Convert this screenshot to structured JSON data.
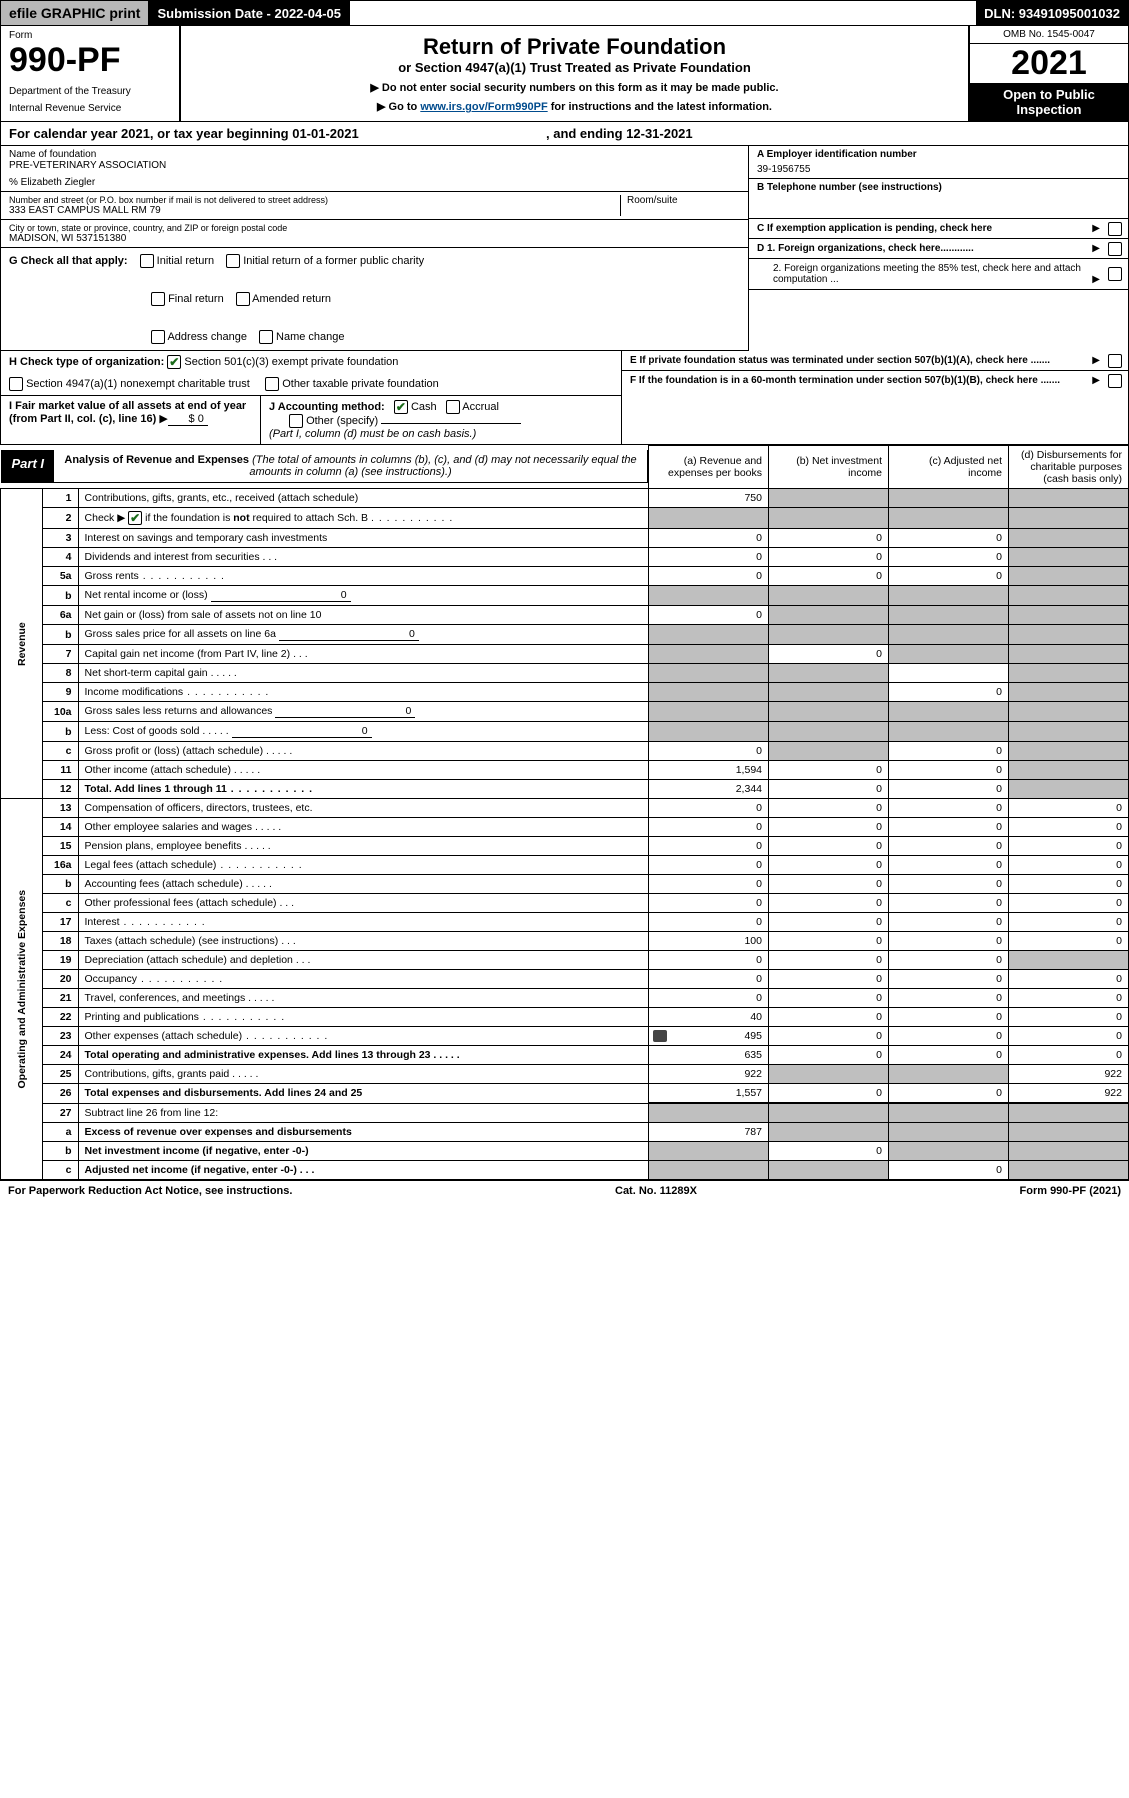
{
  "topbar": {
    "efile": "efile GRAPHIC print",
    "sub_label": "Submission Date - 2022-04-05",
    "dln": "DLN: 93491095001032"
  },
  "header": {
    "form_word": "Form",
    "form_no": "990-PF",
    "dept1": "Department of the Treasury",
    "dept2": "Internal Revenue Service",
    "title": "Return of Private Foundation",
    "subtitle": "or Section 4947(a)(1) Trust Treated as Private Foundation",
    "inst1": "Do not enter social security numbers on this form as it may be made public.",
    "inst2_pre": "Go to ",
    "inst2_link": "www.irs.gov/Form990PF",
    "inst2_post": " for instructions and the latest information.",
    "omb": "OMB No. 1545-0047",
    "year": "2021",
    "open": "Open to Public Inspection"
  },
  "cal": {
    "text_pre": "For calendar year 2021, or tax year beginning 01-01-2021",
    "text_mid": ", and ending 12-31-2021"
  },
  "org": {
    "name_lbl": "Name of foundation",
    "name": "PRE-VETERINARY ASSOCIATION",
    "care": "% Elizabeth Ziegler",
    "addr_lbl": "Number and street (or P.O. box number if mail is not delivered to street address)",
    "addr": "333 EAST CAMPUS MALL RM 79",
    "room_lbl": "Room/suite",
    "city_lbl": "City or town, state or province, country, and ZIP or foreign postal code",
    "city": "MADISON, WI  537151380",
    "ein_lbl": "A Employer identification number",
    "ein": "39-1956755",
    "tel_lbl": "B Telephone number (see instructions)",
    "c_lbl": "C If exemption application is pending, check here",
    "d1": "D 1. Foreign organizations, check here............",
    "d2": "2. Foreign organizations meeting the 85% test, check here and attach computation ...",
    "e": "E  If private foundation status was terminated under section 507(b)(1)(A), check here .......",
    "f": "F  If the foundation is in a 60-month termination under section 507(b)(1)(B), check here .......",
    "g_lbl": "G Check all that apply:",
    "g_opts": [
      "Initial return",
      "Initial return of a former public charity",
      "Final return",
      "Amended return",
      "Address change",
      "Name change"
    ],
    "h_lbl": "H Check type of organization:",
    "h_opts": [
      "Section 501(c)(3) exempt private foundation",
      "Section 4947(a)(1) nonexempt charitable trust",
      "Other taxable private foundation"
    ],
    "i_lbl": "I Fair market value of all assets at end of year (from Part II, col. (c), line 16)",
    "i_val": "$  0",
    "j_lbl": "J Accounting method:",
    "j_cash": "Cash",
    "j_acc": "Accrual",
    "j_other": "Other (specify)",
    "j_note": "(Part I, column (d) must be on cash basis.)"
  },
  "part1": {
    "label": "Part I",
    "desc_b": "Analysis of Revenue and Expenses",
    "desc_i": " (The total of amounts in columns (b), (c), and (d) may not necessarily equal the amounts in column (a) (see instructions).)",
    "col_a": "(a)   Revenue and expenses per books",
    "col_b": "(b)   Net investment income",
    "col_c": "(c)   Adjusted net income",
    "col_d": "(d)  Disbursements for charitable purposes (cash basis only)"
  },
  "section_labels": {
    "rev": "Revenue",
    "exp": "Operating and Administrative Expenses"
  },
  "rows": [
    {
      "n": "1",
      "d": "Contributions, gifts, grants, etc., received (attach schedule)",
      "a": "750",
      "grey": [
        "b",
        "c",
        "d"
      ]
    },
    {
      "n": "2",
      "d": "Check ▶ ☑ if the foundation is not required to attach Sch. B",
      "dots": "long",
      "grey": [
        "a",
        "b",
        "c",
        "d"
      ],
      "note": true
    },
    {
      "n": "3",
      "d": "Interest on savings and temporary cash investments",
      "a": "0",
      "b": "0",
      "c": "0",
      "grey": [
        "d"
      ]
    },
    {
      "n": "4",
      "d": "Dividends and interest from securities",
      "dots": "t",
      "a": "0",
      "b": "0",
      "c": "0",
      "grey": [
        "d"
      ]
    },
    {
      "n": "5a",
      "d": "Gross rents",
      "dots": "long",
      "a": "0",
      "b": "0",
      "c": "0",
      "grey": [
        "d"
      ]
    },
    {
      "n": "b",
      "d": "Net rental income or (loss)",
      "u": "0",
      "grey": [
        "a",
        "b",
        "c",
        "d"
      ]
    },
    {
      "n": "6a",
      "d": "Net gain or (loss) from sale of assets not on line 10",
      "a": "0",
      "grey": [
        "b",
        "c",
        "d"
      ]
    },
    {
      "n": "b",
      "d": "Gross sales price for all assets on line 6a",
      "u": "0",
      "grey": [
        "a",
        "b",
        "c",
        "d"
      ]
    },
    {
      "n": "7",
      "d": "Capital gain net income (from Part IV, line 2)",
      "dots": "t",
      "b": "0",
      "grey": [
        "a",
        "c",
        "d"
      ]
    },
    {
      "n": "8",
      "d": "Net short-term capital gain",
      "dots": "s",
      "grey": [
        "a",
        "b",
        "d"
      ]
    },
    {
      "n": "9",
      "d": "Income modifications",
      "dots": "long",
      "c": "0",
      "grey": [
        "a",
        "b",
        "d"
      ]
    },
    {
      "n": "10a",
      "d": "Gross sales less returns and allowances",
      "u": "0",
      "grey": [
        "a",
        "b",
        "c",
        "d"
      ]
    },
    {
      "n": "b",
      "d": "Less: Cost of goods sold",
      "dots": "s",
      "u": "0",
      "grey": [
        "a",
        "b",
        "c",
        "d"
      ]
    },
    {
      "n": "c",
      "d": "Gross profit or (loss) (attach schedule)",
      "dots": "s",
      "a": "0",
      "c": "0",
      "grey": [
        "b",
        "d"
      ]
    },
    {
      "n": "11",
      "d": "Other income (attach schedule)",
      "dots": "s",
      "a": "1,594",
      "b": "0",
      "c": "0",
      "grey": [
        "d"
      ]
    },
    {
      "n": "12",
      "d": "Total. Add lines 1 through 11",
      "dots": "long",
      "bold": true,
      "a": "2,344",
      "b": "0",
      "c": "0",
      "grey": [
        "d"
      ]
    },
    {
      "n": "13",
      "d": "Compensation of officers, directors, trustees, etc.",
      "a": "0",
      "b": "0",
      "c": "0",
      "dd": "0",
      "sec": "exp"
    },
    {
      "n": "14",
      "d": "Other employee salaries and wages",
      "dots": "s",
      "a": "0",
      "b": "0",
      "c": "0",
      "dd": "0"
    },
    {
      "n": "15",
      "d": "Pension plans, employee benefits",
      "dots": "s",
      "a": "0",
      "b": "0",
      "c": "0",
      "dd": "0"
    },
    {
      "n": "16a",
      "d": "Legal fees (attach schedule)",
      "dots": "long",
      "a": "0",
      "b": "0",
      "c": "0",
      "dd": "0"
    },
    {
      "n": "b",
      "d": "Accounting fees (attach schedule)",
      "dots": "s",
      "a": "0",
      "b": "0",
      "c": "0",
      "dd": "0"
    },
    {
      "n": "c",
      "d": "Other professional fees (attach schedule)",
      "dots": "t",
      "a": "0",
      "b": "0",
      "c": "0",
      "dd": "0"
    },
    {
      "n": "17",
      "d": "Interest",
      "dots": "long",
      "a": "0",
      "b": "0",
      "c": "0",
      "dd": "0"
    },
    {
      "n": "18",
      "d": "Taxes (attach schedule) (see instructions)",
      "dots": "t",
      "a": "100",
      "b": "0",
      "c": "0",
      "dd": "0"
    },
    {
      "n": "19",
      "d": "Depreciation (attach schedule) and depletion",
      "dots": "t",
      "a": "0",
      "b": "0",
      "c": "0",
      "grey": [
        "d"
      ]
    },
    {
      "n": "20",
      "d": "Occupancy",
      "dots": "long",
      "a": "0",
      "b": "0",
      "c": "0",
      "dd": "0"
    },
    {
      "n": "21",
      "d": "Travel, conferences, and meetings",
      "dots": "s",
      "a": "0",
      "b": "0",
      "c": "0",
      "dd": "0"
    },
    {
      "n": "22",
      "d": "Printing and publications",
      "dots": "long",
      "a": "40",
      "b": "0",
      "c": "0",
      "dd": "0"
    },
    {
      "n": "23",
      "d": "Other expenses (attach schedule)",
      "dots": "long",
      "icon": true,
      "a": "495",
      "b": "0",
      "c": "0",
      "dd": "0"
    },
    {
      "n": "24",
      "d": "Total operating and administrative expenses. Add lines 13 through 23",
      "dots": "s",
      "bold": true,
      "a": "635",
      "b": "0",
      "c": "0",
      "dd": "0"
    },
    {
      "n": "25",
      "d": "Contributions, gifts, grants paid",
      "dots": "s",
      "a": "922",
      "grey": [
        "b",
        "c"
      ],
      "dd": "922"
    },
    {
      "n": "26",
      "d": "Total expenses and disbursements. Add lines 24 and 25",
      "bold": true,
      "a": "1,557",
      "b": "0",
      "c": "0",
      "dd": "922"
    },
    {
      "n": "27",
      "d": "Subtract line 26 from line 12:",
      "grey": [
        "a",
        "b",
        "c",
        "d"
      ],
      "thick": true
    },
    {
      "n": "a",
      "d": "Excess of revenue over expenses and disbursements",
      "bold": true,
      "a": "787",
      "grey": [
        "b",
        "c",
        "d"
      ]
    },
    {
      "n": "b",
      "d": "Net investment income (if negative, enter -0-)",
      "bold": true,
      "b": "0",
      "grey": [
        "a",
        "c",
        "d"
      ]
    },
    {
      "n": "c",
      "d": "Adjusted net income (if negative, enter -0-)",
      "dots": "t",
      "bold": true,
      "c": "0",
      "grey": [
        "a",
        "b",
        "d"
      ]
    }
  ],
  "footer": {
    "left": "For Paperwork Reduction Act Notice, see instructions.",
    "mid": "Cat. No. 11289X",
    "right": "Form 990-PF (2021)"
  }
}
